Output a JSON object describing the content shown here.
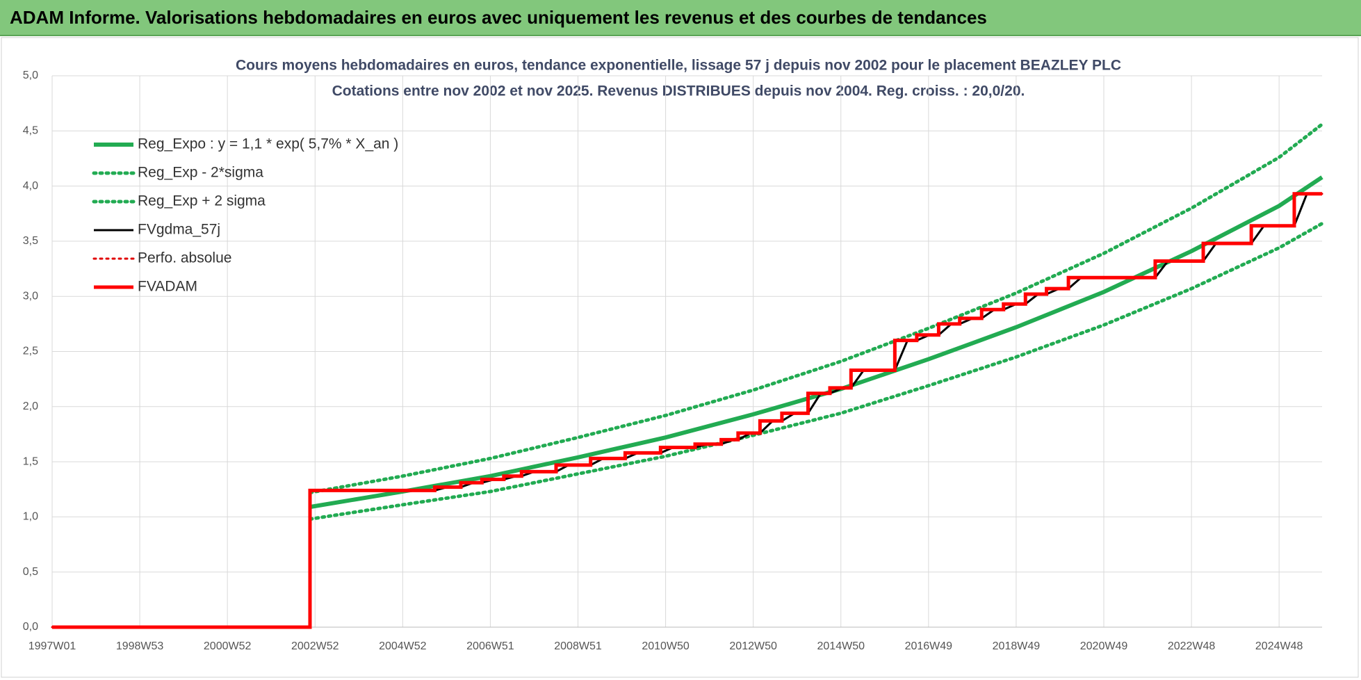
{
  "header": {
    "title": "ADAM Informe. Valorisations hebdomadaires en euros avec uniquement les revenus et des courbes de tendances"
  },
  "chart_data": {
    "type": "line",
    "title": "Cours moyens hebdomadaires en euros, tendance exponentielle, lissage 57 j depuis nov 2002 pour le placement BEAZLEY PLC",
    "subtitle": "Cotations entre nov 2002 et nov 2025. Revenus DISTRIBUES depuis nov 2004. Reg. croiss. : 20,0/20.",
    "xlim": [
      0,
      1507
    ],
    "xticks": [
      {
        "value": 0,
        "label": "1997W01"
      },
      {
        "value": 104,
        "label": "1998W53"
      },
      {
        "value": 208,
        "label": "2000W52"
      },
      {
        "value": 312,
        "label": "2002W52"
      },
      {
        "value": 416,
        "label": "2004W52"
      },
      {
        "value": 520,
        "label": "2006W51"
      },
      {
        "value": 624,
        "label": "2008W51"
      },
      {
        "value": 728,
        "label": "2010W50"
      },
      {
        "value": 832,
        "label": "2012W50"
      },
      {
        "value": 936,
        "label": "2014W50"
      },
      {
        "value": 1040,
        "label": "2016W49"
      },
      {
        "value": 1144,
        "label": "2018W49"
      },
      {
        "value": 1248,
        "label": "2020W49"
      },
      {
        "value": 1352,
        "label": "2022W48"
      },
      {
        "value": 1456,
        "label": "2024W48"
      }
    ],
    "ylim": [
      0,
      5
    ],
    "yticks": [
      {
        "value": 0,
        "label": "0,0"
      },
      {
        "value": 0.5,
        "label": "0,5"
      },
      {
        "value": 1,
        "label": "1,0"
      },
      {
        "value": 1.5,
        "label": "1,5"
      },
      {
        "value": 2,
        "label": "2,0"
      },
      {
        "value": 2.5,
        "label": "2,5"
      },
      {
        "value": 3,
        "label": "3,0"
      },
      {
        "value": 3.5,
        "label": "3,5"
      },
      {
        "value": 4,
        "label": "4,0"
      },
      {
        "value": 4.5,
        "label": "4,5"
      },
      {
        "value": 5,
        "label": "5,0"
      }
    ],
    "grid": true,
    "legend": "upper left",
    "series": [
      {
        "name": "Reg_Expo : y = 1,1 * exp( 5,7% *  X_an )",
        "color": "#22ab52",
        "linestyle": "solid",
        "x": [
          306,
          416,
          520,
          624,
          728,
          832,
          936,
          1040,
          1144,
          1248,
          1352,
          1456,
          1507
        ],
        "values": [
          1.09,
          1.23,
          1.37,
          1.54,
          1.72,
          1.93,
          2.16,
          2.43,
          2.72,
          3.04,
          3.41,
          3.82,
          4.08
        ]
      },
      {
        "name": "Reg_Exp - 2*sigma",
        "color": "#22ab52",
        "linestyle": "dotted",
        "x": [
          306,
          416,
          520,
          624,
          728,
          832,
          936,
          1040,
          1144,
          1248,
          1352,
          1456,
          1507
        ],
        "values": [
          0.98,
          1.11,
          1.23,
          1.39,
          1.55,
          1.74,
          1.94,
          2.19,
          2.45,
          2.74,
          3.07,
          3.44,
          3.66
        ]
      },
      {
        "name": "Reg_Exp + 2 sigma",
        "color": "#22ab52",
        "linestyle": "dotted",
        "x": [
          306,
          416,
          520,
          624,
          728,
          832,
          936,
          1040,
          1144,
          1248,
          1352,
          1456,
          1507
        ],
        "values": [
          1.22,
          1.37,
          1.53,
          1.72,
          1.92,
          2.15,
          2.41,
          2.71,
          3.03,
          3.39,
          3.8,
          4.26,
          4.56
        ]
      },
      {
        "name": "FVgdma_57j",
        "color": "#000000",
        "linestyle": "solid",
        "x": [
          0,
          306,
          306,
          454,
          469,
          485,
          500,
          510,
          525,
          536,
          551,
          557,
          572,
          598,
          613,
          639,
          654,
          680,
          695,
          722,
          737,
          763,
          778,
          794,
          809,
          814,
          829,
          840,
          855,
          866,
          881,
          897,
          912,
          923,
          938,
          948,
          963,
          1000,
          1015,
          1026,
          1041,
          1052,
          1067,
          1077,
          1092,
          1103,
          1118,
          1129,
          1144,
          1155,
          1170,
          1180,
          1195,
          1206,
          1221,
          1309,
          1324,
          1366,
          1381,
          1423,
          1438,
          1474,
          1489,
          1507
        ],
        "values": [
          0,
          0,
          1.24,
          1.24,
          1.27,
          1.27,
          1.31,
          1.31,
          1.34,
          1.34,
          1.37,
          1.37,
          1.41,
          1.41,
          1.47,
          1.47,
          1.53,
          1.53,
          1.58,
          1.58,
          1.63,
          1.63,
          1.66,
          1.66,
          1.7,
          1.7,
          1.76,
          1.76,
          1.87,
          1.87,
          1.94,
          1.94,
          2.12,
          2.12,
          2.17,
          2.17,
          2.33,
          2.33,
          2.6,
          2.6,
          2.65,
          2.65,
          2.75,
          2.75,
          2.8,
          2.8,
          2.88,
          2.88,
          2.93,
          2.93,
          3.02,
          3.02,
          3.07,
          3.07,
          3.17,
          3.17,
          3.32,
          3.32,
          3.48,
          3.48,
          3.64,
          3.64,
          3.93,
          3.93
        ]
      },
      {
        "name": "Perfo. absolue",
        "color": "#e00000",
        "linestyle": "dotted",
        "x": [
          0,
          306,
          306,
          454,
          454,
          485,
          485,
          510,
          510,
          536,
          536,
          557,
          557,
          598,
          598,
          639,
          639,
          680,
          680,
          722,
          722,
          763,
          763,
          794,
          794,
          814,
          814,
          840,
          840,
          866,
          866,
          897,
          897,
          923,
          923,
          948,
          948,
          1000,
          1000,
          1026,
          1026,
          1052,
          1052,
          1077,
          1077,
          1103,
          1103,
          1129,
          1129,
          1155,
          1155,
          1180,
          1180,
          1206,
          1206,
          1309,
          1309,
          1366,
          1366,
          1423,
          1423,
          1474,
          1474,
          1507
        ],
        "values": [
          0,
          0,
          1.24,
          1.24,
          1.27,
          1.27,
          1.31,
          1.31,
          1.34,
          1.34,
          1.37,
          1.37,
          1.41,
          1.41,
          1.47,
          1.47,
          1.53,
          1.53,
          1.58,
          1.58,
          1.63,
          1.63,
          1.66,
          1.66,
          1.7,
          1.7,
          1.76,
          1.76,
          1.87,
          1.87,
          1.94,
          1.94,
          2.12,
          2.12,
          2.17,
          2.17,
          2.33,
          2.33,
          2.6,
          2.6,
          2.65,
          2.65,
          2.75,
          2.75,
          2.8,
          2.8,
          2.88,
          2.88,
          2.93,
          2.93,
          3.02,
          3.02,
          3.07,
          3.07,
          3.17,
          3.17,
          3.32,
          3.32,
          3.48,
          3.48,
          3.64,
          3.64,
          3.93,
          3.93
        ]
      },
      {
        "name": "FVADAM",
        "color": "#ff0000",
        "linestyle": "solid",
        "x": [
          0,
          306,
          306,
          454,
          454,
          485,
          485,
          510,
          510,
          536,
          536,
          557,
          557,
          598,
          598,
          639,
          639,
          680,
          680,
          722,
          722,
          763,
          763,
          794,
          794,
          814,
          814,
          840,
          840,
          866,
          866,
          897,
          897,
          923,
          923,
          948,
          948,
          1000,
          1000,
          1026,
          1026,
          1052,
          1052,
          1077,
          1077,
          1103,
          1103,
          1129,
          1129,
          1155,
          1155,
          1180,
          1180,
          1206,
          1206,
          1309,
          1309,
          1366,
          1366,
          1423,
          1423,
          1474,
          1474,
          1507
        ],
        "values": [
          0,
          0,
          1.24,
          1.24,
          1.27,
          1.27,
          1.31,
          1.31,
          1.34,
          1.34,
          1.37,
          1.37,
          1.41,
          1.41,
          1.47,
          1.47,
          1.53,
          1.53,
          1.58,
          1.58,
          1.63,
          1.63,
          1.66,
          1.66,
          1.7,
          1.7,
          1.76,
          1.76,
          1.87,
          1.87,
          1.94,
          1.94,
          2.12,
          2.12,
          2.17,
          2.17,
          2.33,
          2.33,
          2.6,
          2.6,
          2.65,
          2.65,
          2.75,
          2.75,
          2.8,
          2.8,
          2.88,
          2.88,
          2.93,
          2.93,
          3.02,
          3.02,
          3.07,
          3.07,
          3.17,
          3.17,
          3.32,
          3.32,
          3.48,
          3.48,
          3.64,
          3.64,
          3.93,
          3.93
        ]
      }
    ]
  }
}
